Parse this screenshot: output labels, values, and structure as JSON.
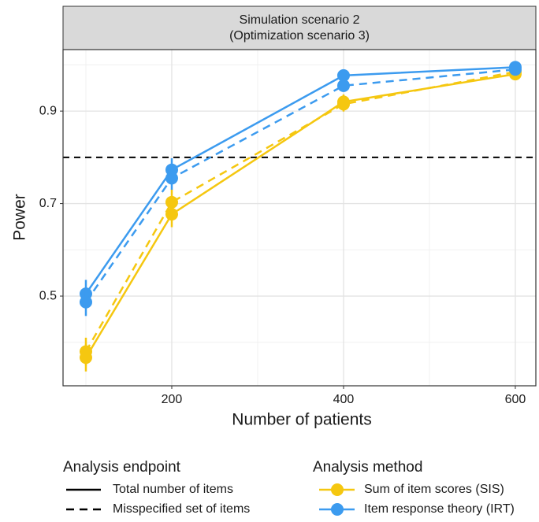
{
  "chart_data": {
    "type": "line",
    "strip": [
      "Simulation scenario 2",
      "(Optimization scenario 3)"
    ],
    "xlabel": "Number of patients",
    "ylabel": "Power",
    "x": [
      100,
      200,
      400,
      600
    ],
    "series": [
      {
        "color": "#F5C710",
        "dashed": false,
        "values": [
          0.367,
          0.677,
          0.92,
          0.98
        ],
        "errors": [
          0.03,
          0.028,
          0.016,
          0.008
        ]
      },
      {
        "color": "#F5C710",
        "dashed": true,
        "values": [
          0.38,
          0.703,
          0.915,
          0.985
        ],
        "errors": [
          0.03,
          0.028,
          0.016,
          0.008
        ]
      },
      {
        "color": "#3C9BEF",
        "dashed": false,
        "values": [
          0.505,
          0.773,
          0.977,
          0.995
        ],
        "errors": [
          0.03,
          0.025,
          0.009,
          0.004
        ]
      },
      {
        "color": "#3C9BEF",
        "dashed": true,
        "values": [
          0.487,
          0.755,
          0.955,
          0.99
        ],
        "errors": [
          0.03,
          0.025,
          0.012,
          0.005
        ]
      }
    ],
    "hline": 0.8,
    "xlim": [
      73.4,
      623.9
    ],
    "ylim": [
      0.306,
      1.033
    ],
    "xticks": [
      200,
      400,
      600
    ],
    "yticks": [
      0.5,
      0.7,
      0.9
    ],
    "minor_xticks": [
      100,
      300,
      500
    ],
    "minor_yticks": [
      0.4,
      0.6,
      0.8,
      1.0
    ],
    "grid": true,
    "linetype_legend": {
      "title": "Analysis endpoint",
      "labels": [
        "Total number of items",
        "Misspecified set of items"
      ],
      "dashed": [
        false,
        true
      ]
    },
    "color_legend": {
      "title": "Analysis method",
      "labels": [
        "Sum of item scores (SIS)",
        "Item response theory (IRT)"
      ],
      "colors": [
        "#F5C710",
        "#3C9BEF"
      ]
    }
  }
}
